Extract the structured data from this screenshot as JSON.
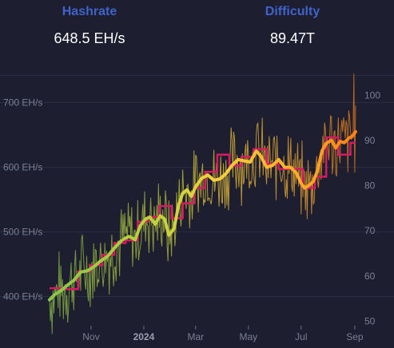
{
  "stats": {
    "hashrate_label": "Hashrate",
    "hashrate_value": "648.5 EH/s",
    "difficulty_label": "Difficulty",
    "difficulty_value": "89.47T"
  },
  "colors": {
    "label": "#3f63c9",
    "value": "#ffffff",
    "hashrate_early": "#8bc34a",
    "hashrate_mid": "#f4d03f",
    "hashrate_late": "#ff9800",
    "difficulty": "#d81b60",
    "grid": "#2c2e45",
    "background": "#1d1e30"
  },
  "chart_data": {
    "type": "line",
    "x_ticks": [
      {
        "label": "Nov",
        "date": "2023-11-01",
        "bold": false
      },
      {
        "label": "2024",
        "date": "2024-01-01",
        "bold": true
      },
      {
        "label": "Mar",
        "date": "2024-03-01",
        "bold": false
      },
      {
        "label": "May",
        "date": "2024-05-01",
        "bold": false
      },
      {
        "label": "Jul",
        "date": "2024-07-01",
        "bold": false
      },
      {
        "label": "Sep",
        "date": "2024-09-01",
        "bold": false
      }
    ],
    "xlim": [
      "2023-09-14",
      "2024-09-02"
    ],
    "y_left": {
      "ticks": [
        400,
        500,
        600,
        700
      ],
      "tick_labels": [
        "400 EH/s",
        "500 EH/s",
        "600 EH/s",
        "700 EH/s"
      ],
      "ylim": [
        355,
        760
      ]
    },
    "y_right": {
      "ticks": [
        50,
        60,
        70,
        80,
        90,
        100
      ],
      "ylim": [
        49,
        107
      ]
    },
    "grid": true,
    "series": [
      {
        "role": "hashrate_average",
        "axis": "left",
        "points": [
          [
            "2023-09-14",
            395
          ],
          [
            "2023-09-20",
            403
          ],
          [
            "2023-09-28",
            410
          ],
          [
            "2023-10-05",
            418
          ],
          [
            "2023-10-12",
            425
          ],
          [
            "2023-10-20",
            438
          ],
          [
            "2023-10-28",
            440
          ],
          [
            "2023-11-05",
            447
          ],
          [
            "2023-11-12",
            455
          ],
          [
            "2023-11-20",
            462
          ],
          [
            "2023-11-28",
            475
          ],
          [
            "2023-12-05",
            485
          ],
          [
            "2023-12-10",
            490
          ],
          [
            "2023-12-15",
            493
          ],
          [
            "2023-12-22",
            488
          ],
          [
            "2023-12-28",
            510
          ],
          [
            "2024-01-03",
            520
          ],
          [
            "2024-01-08",
            523
          ],
          [
            "2024-01-14",
            512
          ],
          [
            "2024-01-20",
            525
          ],
          [
            "2024-01-25",
            520
          ],
          [
            "2024-01-30",
            495
          ],
          [
            "2024-02-05",
            505
          ],
          [
            "2024-02-10",
            540
          ],
          [
            "2024-02-15",
            560
          ],
          [
            "2024-02-20",
            565
          ],
          [
            "2024-02-25",
            555
          ],
          [
            "2024-03-01",
            570
          ],
          [
            "2024-03-08",
            583
          ],
          [
            "2024-03-15",
            588
          ],
          [
            "2024-03-22",
            580
          ],
          [
            "2024-03-29",
            582
          ],
          [
            "2024-04-05",
            590
          ],
          [
            "2024-04-12",
            603
          ],
          [
            "2024-04-19",
            612
          ],
          [
            "2024-04-26",
            610
          ],
          [
            "2024-05-03",
            608
          ],
          [
            "2024-05-10",
            625
          ],
          [
            "2024-05-15",
            618
          ],
          [
            "2024-05-22",
            600
          ],
          [
            "2024-05-29",
            603
          ],
          [
            "2024-06-05",
            612
          ],
          [
            "2024-06-12",
            600
          ],
          [
            "2024-06-19",
            600
          ],
          [
            "2024-06-26",
            590
          ],
          [
            "2024-07-01",
            575
          ],
          [
            "2024-07-05",
            568
          ],
          [
            "2024-07-10",
            572
          ],
          [
            "2024-07-15",
            578
          ],
          [
            "2024-07-20",
            595
          ],
          [
            "2024-07-25",
            625
          ],
          [
            "2024-07-30",
            637
          ],
          [
            "2024-08-05",
            642
          ],
          [
            "2024-08-10",
            630
          ],
          [
            "2024-08-15",
            640
          ],
          [
            "2024-08-20",
            638
          ],
          [
            "2024-08-25",
            645
          ],
          [
            "2024-08-29",
            648
          ],
          [
            "2024-09-02",
            655
          ]
        ]
      },
      {
        "role": "difficulty",
        "axis": "right",
        "steps": [
          [
            "2023-09-14",
            57.3
          ],
          [
            "2023-10-03",
            57.1
          ],
          [
            "2023-10-17",
            61.0
          ],
          [
            "2023-10-31",
            62.4
          ],
          [
            "2023-11-14",
            64.7
          ],
          [
            "2023-11-28",
            67.3
          ],
          [
            "2023-12-11",
            67.9
          ],
          [
            "2023-12-25",
            72.0
          ],
          [
            "2024-01-06",
            73.1
          ],
          [
            "2024-01-19",
            75.5
          ],
          [
            "2024-02-02",
            72.8
          ],
          [
            "2024-02-15",
            76.1
          ],
          [
            "2024-02-28",
            79.5
          ],
          [
            "2024-03-12",
            83.1
          ],
          [
            "2024-03-26",
            86.9
          ],
          [
            "2024-04-09",
            84.4
          ],
          [
            "2024-04-23",
            86.4
          ],
          [
            "2024-05-07",
            88.1
          ],
          [
            "2024-05-22",
            84.8
          ],
          [
            "2024-06-05",
            83.7
          ],
          [
            "2024-06-19",
            83.7
          ],
          [
            "2024-07-03",
            79.5
          ],
          [
            "2024-07-17",
            82.0
          ],
          [
            "2024-07-30",
            90.7
          ],
          [
            "2024-08-13",
            86.9
          ],
          [
            "2024-08-27",
            89.5
          ],
          [
            "2024-09-02",
            89.5
          ]
        ]
      },
      {
        "role": "hashrate_daily",
        "axis": "left",
        "note_source": "visible noisy daily band around the average, spread approximately ±60 EH/s, peak 745 EH/s near 2024-08-31"
      }
    ]
  }
}
